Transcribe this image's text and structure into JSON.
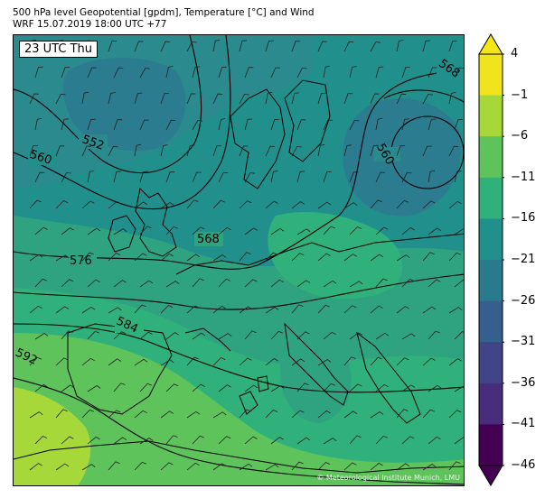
{
  "header": {
    "title_line1": "500 hPa level Geopotential [gpdm], Temperature [°C] and Wind",
    "title_line2": "WRF 15.07.2019 18:00 UTC +77"
  },
  "map": {
    "time_label": "23 UTC Thu",
    "copyright": "© Meteorological Institute Munich, LMU",
    "contour_labels": [
      "552",
      "560",
      "568",
      "568",
      "576",
      "584",
      "592",
      "560"
    ]
  },
  "colorbar": {
    "ticks": [
      "4",
      "−1",
      "−6",
      "−11",
      "−16",
      "−21",
      "−26",
      "−31",
      "−36",
      "−41",
      "−46"
    ],
    "colors": [
      "#f0e51c",
      "#a6d83a",
      "#5ec35a",
      "#30b07a",
      "#21908c",
      "#2a7a8e",
      "#35608d",
      "#414487",
      "#472d7b",
      "#440154"
    ]
  }
}
